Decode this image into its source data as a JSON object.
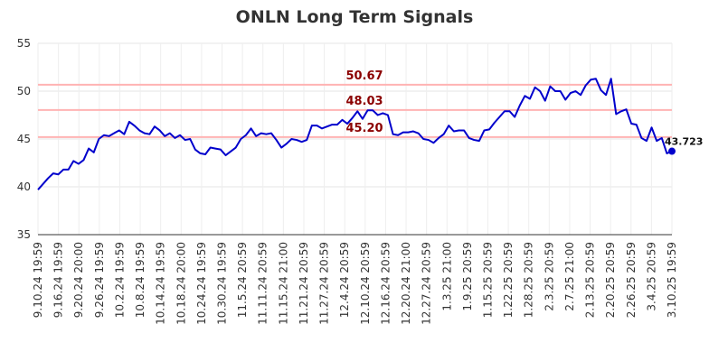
{
  "chart_data": {
    "type": "line",
    "title": "ONLN Long Term Signals",
    "xlabel": "",
    "ylabel": "",
    "ylim": [
      35,
      55
    ],
    "y_ticks": [
      35,
      40,
      45,
      50,
      55
    ],
    "grid": true,
    "line_color": "#0000cc",
    "ref_color": "#ffb3b3",
    "ref_label_color": "#8b0000",
    "x_tick_labels": [
      "9.10.24 19:59",
      "9.16.24 19:59",
      "9.20.24 20:00",
      "9.26.24 19:59",
      "10.2.24 19:59",
      "10.8.24 19:59",
      "10.14.24 19:59",
      "10.18.24 20:00",
      "10.24.24 19:59",
      "10.30.24 19:59",
      "11.5.24 20:59",
      "11.11.24 20:59",
      "11.15.24 21:00",
      "11.21.24 20:59",
      "11.27.24 20:59",
      "12.4.24 20:59",
      "12.10.24 20:59",
      "12.16.24 20:59",
      "12.20.24 21:00",
      "12.27.24 20:59",
      "1.3.25 21:00",
      "1.9.25 20:59",
      "1.15.25 20:59",
      "1.22.25 20:59",
      "1.28.25 20:59",
      "2.3.25 20:59",
      "2.7.25 21:00",
      "2.13.25 20:59",
      "2.20.25 20:59",
      "2.26.25 20:59",
      "3.4.25 20:59",
      "3.10.25 19:59"
    ],
    "reference_lines": [
      {
        "value": 50.67,
        "label": "50.67"
      },
      {
        "value": 48.03,
        "label": "48.03"
      },
      {
        "value": 45.2,
        "label": "45.20"
      }
    ],
    "last_value_label": "43.723",
    "series": [
      {
        "values": [
          39.7,
          40.3,
          40.9,
          41.4,
          41.3,
          41.8,
          41.8,
          42.7,
          42.4,
          42.8,
          44.0,
          43.6,
          45.0,
          45.4,
          45.3,
          45.6,
          45.9,
          45.5,
          46.8,
          46.4,
          45.9,
          45.6,
          45.5,
          46.3,
          45.9,
          45.3,
          45.6,
          45.1,
          45.4,
          44.9,
          45.0,
          43.9,
          43.5,
          43.4,
          44.1,
          44.0,
          43.9,
          43.3,
          43.7,
          44.1,
          45.0,
          45.4,
          46.1,
          45.3,
          45.6,
          45.5,
          45.6,
          44.9,
          44.1,
          44.5,
          45.0,
          44.9,
          44.7,
          44.9,
          46.4,
          46.4,
          46.1,
          46.3,
          46.5,
          46.5,
          47.0,
          46.6,
          47.2,
          47.9,
          47.1,
          48.0,
          48.0,
          47.5,
          47.7,
          47.5,
          45.5,
          45.4,
          45.7,
          45.7,
          45.8,
          45.6,
          45.0,
          44.9,
          44.6,
          45.1,
          45.5,
          46.4,
          45.8,
          45.9,
          45.9,
          45.1,
          44.9,
          44.8,
          45.9,
          46.0,
          46.7,
          47.3,
          47.9,
          47.9,
          47.3,
          48.5,
          49.5,
          49.2,
          50.4,
          50.0,
          49.0,
          50.5,
          50.0,
          50.0,
          49.1,
          49.8,
          50.0,
          49.6,
          50.6,
          51.2,
          51.3,
          50.1,
          49.6,
          51.3,
          47.6,
          47.9,
          48.1,
          46.6,
          46.5,
          45.1,
          44.8,
          46.2,
          44.8,
          45.1,
          43.5,
          43.723
        ]
      }
    ]
  }
}
